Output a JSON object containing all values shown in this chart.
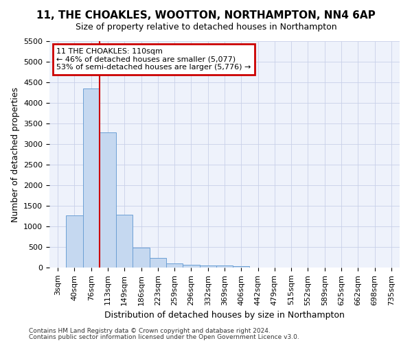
{
  "title": "11, THE CHOAKLES, WOOTTON, NORTHAMPTON, NN4 6AP",
  "subtitle": "Size of property relative to detached houses in Northampton",
  "xlabel": "Distribution of detached houses by size in Northampton",
  "ylabel": "Number of detached properties",
  "bar_labels": [
    "3sqm",
    "40sqm",
    "76sqm",
    "113sqm",
    "149sqm",
    "186sqm",
    "223sqm",
    "259sqm",
    "296sqm",
    "332sqm",
    "369sqm",
    "406sqm",
    "442sqm",
    "479sqm",
    "515sqm",
    "552sqm",
    "589sqm",
    "625sqm",
    "662sqm",
    "698sqm",
    "735sqm"
  ],
  "bar_values": [
    0,
    1270,
    4350,
    3280,
    1280,
    480,
    240,
    100,
    75,
    50,
    50,
    30,
    0,
    0,
    0,
    0,
    0,
    0,
    0,
    0,
    0
  ],
  "bar_color": "#c5d8f0",
  "bar_edge_color": "#6b9fd4",
  "vline_index": 2.5,
  "annotation_text": "11 THE CHOAKLES: 110sqm\n← 46% of detached houses are smaller (5,077)\n53% of semi-detached houses are larger (5,776) →",
  "annotation_box_facecolor": "white",
  "annotation_box_edgecolor": "#cc0000",
  "vline_color": "#cc0000",
  "ylim": [
    0,
    5500
  ],
  "yticks": [
    0,
    500,
    1000,
    1500,
    2000,
    2500,
    3000,
    3500,
    4000,
    4500,
    5000,
    5500
  ],
  "footer1": "Contains HM Land Registry data © Crown copyright and database right 2024.",
  "footer2": "Contains public sector information licensed under the Open Government Licence v3.0.",
  "background_color": "#ffffff",
  "plot_bg_color": "#eef2fb",
  "grid_color": "#c8d0e8",
  "title_fontsize": 11,
  "subtitle_fontsize": 9,
  "annotation_fontsize": 8,
  "axis_label_fontsize": 9,
  "tick_fontsize": 8
}
